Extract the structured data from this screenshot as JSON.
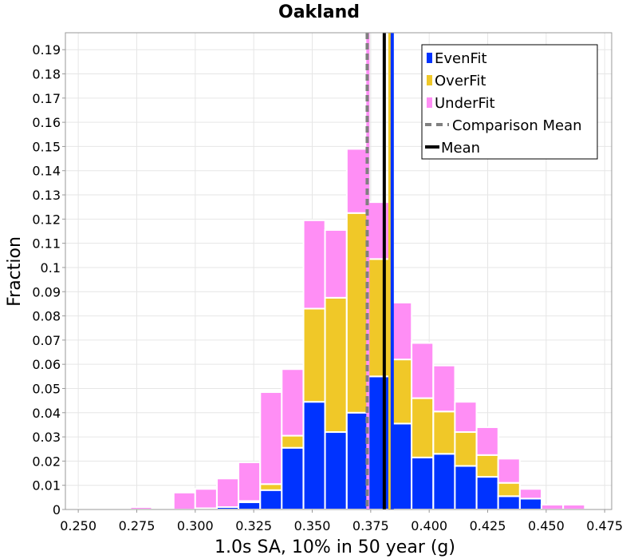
{
  "chart_data": {
    "type": "bar",
    "stacked": true,
    "title": "Oakland",
    "xlabel": "1.0s SA, 10% in 50 year (g)",
    "ylabel": "Fraction",
    "xlim": [
      0.2445,
      0.478
    ],
    "ylim": [
      0,
      0.197
    ],
    "bin_width": 0.00925,
    "x_ticks": [
      "0.250",
      "0.275",
      "0.300",
      "0.325",
      "0.350",
      "0.375",
      "0.400",
      "0.425",
      "0.450",
      "0.475"
    ],
    "y_ticks": [
      "0",
      "0.01",
      "0.02",
      "0.03",
      "0.04",
      "0.05",
      "0.06",
      "0.07",
      "0.08",
      "0.09",
      "0.1",
      "0.11",
      "0.12",
      "0.13",
      "0.14",
      "0.15",
      "0.16",
      "0.17",
      "0.18",
      "0.19"
    ],
    "grid": true,
    "legend_position": "top-right",
    "x": [
      0.2491,
      0.2584,
      0.2676,
      0.2769,
      0.2861,
      0.2954,
      0.3046,
      0.3139,
      0.3231,
      0.3324,
      0.3416,
      0.3509,
      0.3601,
      0.3694,
      0.3786,
      0.3879,
      0.3971,
      0.4064,
      0.4156,
      0.4249,
      0.4341,
      0.4434,
      0.4526,
      0.4619,
      0.4711
    ],
    "series": [
      {
        "name": "EvenFit",
        "color": "#0033ff",
        "values": [
          0,
          0,
          0,
          0,
          0,
          0,
          0.0005,
          0.001,
          0.003,
          0.008,
          0.0255,
          0.0445,
          0.032,
          0.04,
          0.055,
          0.0355,
          0.0215,
          0.023,
          0.018,
          0.0135,
          0.0055,
          0.0045,
          0,
          0,
          0
        ]
      },
      {
        "name": "OverFit",
        "color": "#f0c828",
        "values": [
          0,
          0,
          0,
          0,
          0,
          0,
          0,
          0,
          0.0005,
          0.0025,
          0.005,
          0.0385,
          0.0555,
          0.0825,
          0.0485,
          0.0265,
          0.0245,
          0.0175,
          0.014,
          0.009,
          0.0055,
          0,
          0,
          0,
          0
        ]
      },
      {
        "name": "UnderFit",
        "color": "#ff8ef5",
        "values": [
          0.0005,
          0.0005,
          0.0005,
          0.001,
          0.0005,
          0.007,
          0.008,
          0.0118,
          0.016,
          0.038,
          0.0275,
          0.0365,
          0.028,
          0.0265,
          0.0235,
          0.0235,
          0.0228,
          0.019,
          0.0125,
          0.0115,
          0.01,
          0.004,
          0.002,
          0.002,
          0
        ]
      }
    ],
    "vlines": [
      {
        "name": "Comparison Mean",
        "x": 0.3735,
        "color": "#808080",
        "style": "dashed"
      },
      {
        "name": "Mean",
        "x": 0.3808,
        "color": "#000000",
        "style": "solid"
      }
    ],
    "extra_lines": [
      {
        "x": 0.3738,
        "color": "#ff8ef5"
      },
      {
        "x": 0.3832,
        "color": "#f0c828"
      },
      {
        "x": 0.3842,
        "color": "#0033ff"
      }
    ]
  }
}
